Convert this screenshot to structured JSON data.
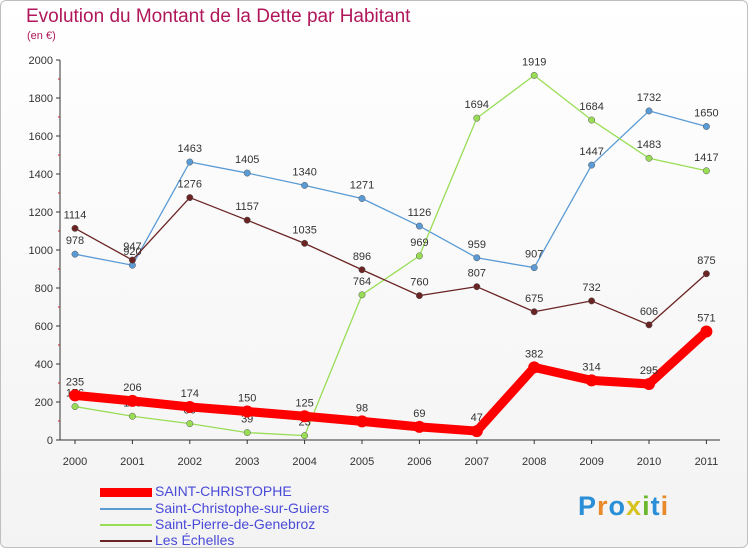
{
  "title": "Evolution du Montant de la Dette par Habitant",
  "subtitle": "(en €)",
  "chart_data": {
    "type": "line",
    "title": "Evolution du Montant de la Dette par Habitant",
    "subtitle": "(en €)",
    "xlabel": "",
    "ylabel": "",
    "x": [
      2000,
      2001,
      2002,
      2003,
      2004,
      2005,
      2006,
      2007,
      2008,
      2009,
      2010,
      2011
    ],
    "ylim": [
      0,
      2000
    ],
    "yticks": [
      0,
      200,
      400,
      600,
      800,
      1000,
      1200,
      1400,
      1600,
      1800,
      2000
    ],
    "grid": false,
    "legend_position": "bottom-left",
    "series": [
      {
        "name": "SAINT-CHRISTOPHE",
        "color": "#ff0000",
        "values": [
          235,
          206,
          174,
          150,
          125,
          98,
          69,
          47,
          382,
          314,
          295,
          571
        ]
      },
      {
        "name": "Saint-Christophe-sur-Guiers",
        "color": "#5b9bd5",
        "values": [
          978,
          920,
          1463,
          1405,
          1340,
          1271,
          1126,
          959,
          907,
          1447,
          1732,
          1650
        ]
      },
      {
        "name": "Saint-Pierre-de-Genebroz",
        "color": "#99dd55",
        "values": [
          176,
          125,
          86,
          39,
          23,
          764,
          969,
          1694,
          1919,
          1684,
          1483,
          1417
        ]
      },
      {
        "name": "Les Échelles",
        "color": "#6b2424",
        "values": [
          1114,
          947,
          1276,
          1157,
          1035,
          896,
          760,
          807,
          675,
          732,
          606,
          875
        ]
      }
    ]
  },
  "logo": {
    "letters": [
      "P",
      "r",
      "o",
      "x",
      "i",
      "t",
      "i"
    ],
    "colors": [
      "#2a8fd6",
      "#e8892a",
      "#2a8fd6",
      "#d8c21e",
      "#6ab82e",
      "#2a8fd6",
      "#e8892a"
    ]
  }
}
